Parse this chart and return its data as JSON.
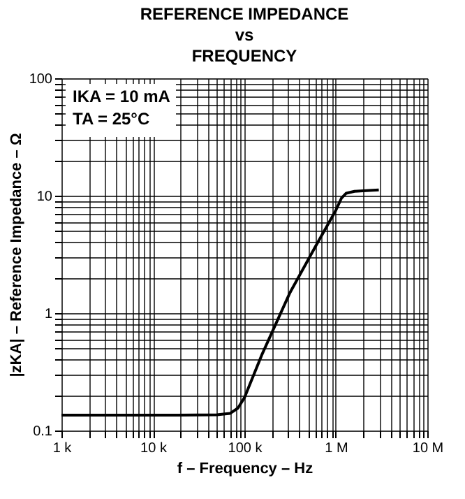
{
  "chart_data": {
    "type": "line",
    "title": "REFERENCE IMPEDANCE\nvs\nFREQUENCY",
    "xlabel": "f – Frequency – Hz",
    "ylabel": "|zKA| – Reference Impedance – Ω",
    "annotations": [
      "IKA = 10 mA",
      "TA = 25°C"
    ],
    "x": [
      1000,
      10000,
      50000,
      70000,
      85000,
      100000,
      155000,
      316000,
      600000,
      1000000,
      1150000,
      1300000,
      1600000,
      2000000,
      2950000
    ],
    "series": [
      {
        "color": "#000000",
        "values": [
          0.135,
          0.135,
          0.136,
          0.14,
          0.155,
          0.19,
          0.44,
          1.5,
          3.7,
          7.5,
          9.5,
          10.5,
          10.9,
          11.0,
          11.2
        ]
      }
    ],
    "log": "xy",
    "grid": true,
    "marker": "none",
    "line_style": "solid",
    "xlim": [
      1000,
      10000000
    ],
    "ylim": [
      0.1,
      100
    ],
    "xticks": [
      {
        "value": 1000,
        "label": "1 k"
      },
      {
        "value": 2000,
        "label": null
      },
      {
        "value": 3000,
        "label": null
      },
      {
        "value": 4000,
        "label": null
      },
      {
        "value": 5000,
        "label": null
      },
      {
        "value": 6000,
        "label": null
      },
      {
        "value": 7000,
        "label": null
      },
      {
        "value": 8000,
        "label": null
      },
      {
        "value": 9000,
        "label": null
      },
      {
        "value": 10000,
        "label": "10 k"
      },
      {
        "value": 20000,
        "label": null
      },
      {
        "value": 30000,
        "label": null
      },
      {
        "value": 40000,
        "label": null
      },
      {
        "value": 50000,
        "label": null
      },
      {
        "value": 60000,
        "label": null
      },
      {
        "value": 70000,
        "label": null
      },
      {
        "value": 80000,
        "label": null
      },
      {
        "value": 90000,
        "label": null
      },
      {
        "value": 100000,
        "label": "100 k"
      },
      {
        "value": 200000,
        "label": null
      },
      {
        "value": 300000,
        "label": null
      },
      {
        "value": 400000,
        "label": null
      },
      {
        "value": 500000,
        "label": null
      },
      {
        "value": 600000,
        "label": null
      },
      {
        "value": 700000,
        "label": null
      },
      {
        "value": 800000,
        "label": null
      },
      {
        "value": 900000,
        "label": null
      },
      {
        "value": 1000000,
        "label": "1 M"
      },
      {
        "value": 2000000,
        "label": null
      },
      {
        "value": 3000000,
        "label": null
      },
      {
        "value": 4000000,
        "label": null
      },
      {
        "value": 5000000,
        "label": null
      },
      {
        "value": 6000000,
        "label": null
      },
      {
        "value": 7000000,
        "label": null
      },
      {
        "value": 8000000,
        "label": null
      },
      {
        "value": 9000000,
        "label": null
      },
      {
        "value": 10000000,
        "label": "10 M"
      }
    ],
    "yticks": [
      0.1,
      {
        "value": 0.2,
        "label": null
      },
      {
        "value": 0.3,
        "label": null
      },
      {
        "value": 0.4,
        "label": null
      },
      {
        "value": 0.5,
        "label": null
      },
      {
        "value": 0.6,
        "label": null
      },
      {
        "value": 0.7,
        "label": null
      },
      {
        "value": 0.8,
        "label": null
      },
      {
        "value": 0.9,
        "label": null
      },
      1,
      {
        "value": 2,
        "label": null
      },
      {
        "value": 3,
        "label": null
      },
      {
        "value": 4,
        "label": null
      },
      {
        "value": 5,
        "label": null
      },
      {
        "value": 6,
        "label": null
      },
      {
        "value": 7,
        "label": null
      },
      {
        "value": 8,
        "label": null
      },
      {
        "value": 9,
        "label": null
      },
      10,
      {
        "value": 20,
        "label": null
      },
      {
        "value": 30,
        "label": null
      },
      {
        "value": 40,
        "label": null
      },
      {
        "value": 50,
        "label": null
      },
      {
        "value": 60,
        "label": null
      },
      {
        "value": 70,
        "label": null
      },
      {
        "value": 80,
        "label": null
      },
      {
        "value": 90,
        "label": null
      },
      100
    ]
  }
}
